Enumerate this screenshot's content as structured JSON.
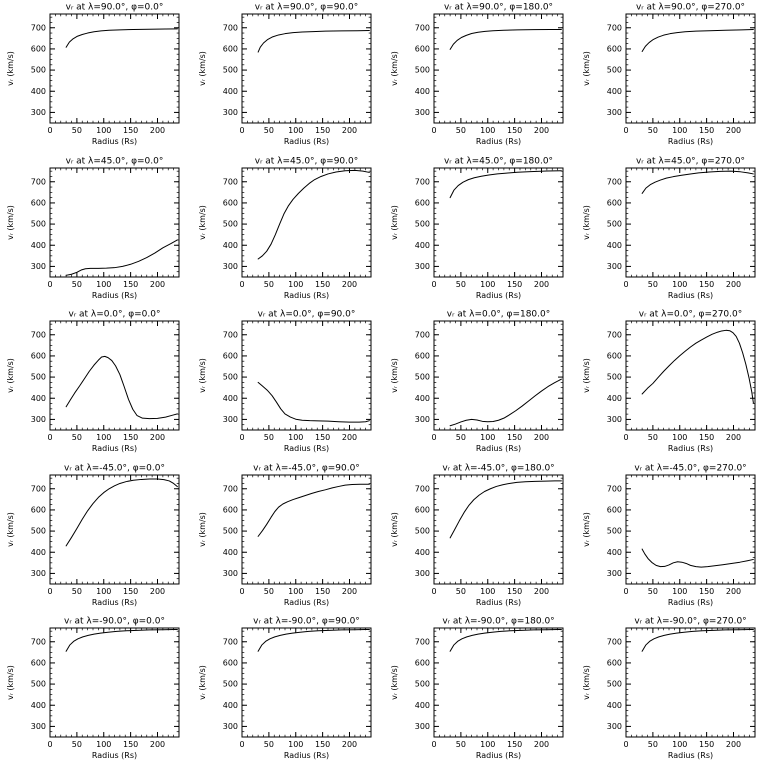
{
  "figure": {
    "background": "#ffffff",
    "line_color": "#000000",
    "rows": 5,
    "cols": 4,
    "latitudes": [
      90.0,
      45.0,
      0.0,
      -45.0,
      -90.0
    ],
    "longitudes": [
      0.0,
      90.0,
      180.0,
      270.0
    ],
    "axes": {
      "xlim": [
        0,
        240
      ],
      "ylim": [
        250,
        765
      ],
      "xticks": [
        0,
        50,
        100,
        150,
        200
      ],
      "yticks": [
        300,
        400,
        500,
        600,
        700
      ],
      "x_minor_step": 10,
      "y_minor_step": 25,
      "xlabel": "Radius (Rs)",
      "ylabel": "vᵣ (km/s)"
    }
  },
  "chart_data": [
    {
      "type": "line",
      "title": "vᵣ at λ=90.0°, φ=0.0°",
      "lat": 90.0,
      "lon": 0.0,
      "xlabel": "Radius (Rs)",
      "ylabel": "vᵣ (km/s)",
      "xlim": [
        0,
        240
      ],
      "ylim": [
        250,
        765
      ],
      "xticks": [
        0,
        50,
        100,
        150,
        200
      ],
      "yticks": [
        300,
        400,
        500,
        600,
        700
      ],
      "x": [
        30,
        36,
        43,
        51,
        60,
        70,
        82,
        95,
        110,
        130,
        155,
        185,
        215,
        237
      ],
      "y": [
        608,
        632,
        648,
        660,
        668,
        675,
        681,
        685,
        688,
        690,
        692,
        693,
        694,
        695
      ]
    },
    {
      "type": "line",
      "title": "vᵣ at λ=90.0°, φ=90.0°",
      "lat": 90.0,
      "lon": 90.0,
      "xlabel": "Radius (Rs)",
      "ylabel": "vᵣ (km/s)",
      "xlim": [
        0,
        240
      ],
      "ylim": [
        250,
        765
      ],
      "xticks": [
        0,
        50,
        100,
        150,
        200
      ],
      "yticks": [
        300,
        400,
        500,
        600,
        700
      ],
      "x": [
        30,
        34,
        40,
        48,
        57,
        68,
        80,
        95,
        112,
        132,
        155,
        185,
        215,
        237
      ],
      "y": [
        585,
        608,
        628,
        645,
        657,
        666,
        672,
        677,
        680,
        682,
        684,
        685,
        686,
        687
      ]
    },
    {
      "type": "line",
      "title": "vᵣ at λ=90.0°, φ=180.0°",
      "lat": 90.0,
      "lon": 180.0,
      "xlabel": "Radius (Rs)",
      "ylabel": "vᵣ (km/s)",
      "xlim": [
        0,
        240
      ],
      "ylim": [
        250,
        765
      ],
      "xticks": [
        0,
        50,
        100,
        150,
        200
      ],
      "yticks": [
        300,
        400,
        500,
        600,
        700
      ],
      "x": [
        30,
        36,
        43,
        51,
        60,
        70,
        82,
        95,
        110,
        130,
        155,
        185,
        215,
        237
      ],
      "y": [
        598,
        622,
        640,
        654,
        664,
        673,
        679,
        683,
        686,
        688,
        690,
        691,
        692,
        692
      ]
    },
    {
      "type": "line",
      "title": "vᵣ at λ=90.0°, φ=270.0°",
      "lat": 90.0,
      "lon": 270.0,
      "xlabel": "Radius (Rs)",
      "ylabel": "vᵣ (km/s)",
      "xlim": [
        0,
        240
      ],
      "ylim": [
        250,
        765
      ],
      "xticks": [
        0,
        50,
        100,
        150,
        200
      ],
      "yticks": [
        300,
        400,
        500,
        600,
        700
      ],
      "x": [
        30,
        36,
        43,
        51,
        60,
        70,
        82,
        95,
        110,
        130,
        155,
        185,
        215,
        237
      ],
      "y": [
        588,
        612,
        630,
        645,
        656,
        665,
        672,
        677,
        681,
        684,
        686,
        688,
        690,
        692
      ]
    },
    {
      "type": "line",
      "title": "vᵣ at λ=45.0°, φ=0.0°",
      "lat": 45.0,
      "lon": 0.0,
      "xlabel": "Radius (Rs)",
      "ylabel": "vᵣ (km/s)",
      "xlim": [
        0,
        240
      ],
      "ylim": [
        250,
        765
      ],
      "xticks": [
        0,
        50,
        100,
        150,
        200
      ],
      "yticks": [
        300,
        400,
        500,
        600,
        700
      ],
      "x": [
        30,
        40,
        50,
        58,
        66,
        75,
        90,
        105,
        120,
        135,
        150,
        165,
        180,
        195,
        210,
        225,
        237
      ],
      "y": [
        258,
        263,
        272,
        283,
        289,
        291,
        291,
        292,
        294,
        300,
        310,
        324,
        342,
        363,
        388,
        408,
        425
      ]
    },
    {
      "type": "line",
      "title": "vᵣ at λ=45.0°, φ=90.0°",
      "lat": 45.0,
      "lon": 90.0,
      "xlabel": "Radius (Rs)",
      "ylabel": "vᵣ (km/s)",
      "xlim": [
        0,
        240
      ],
      "ylim": [
        250,
        765
      ],
      "xticks": [
        0,
        50,
        100,
        150,
        200
      ],
      "yticks": [
        300,
        400,
        500,
        600,
        700
      ],
      "x": [
        30,
        38,
        46,
        54,
        62,
        70,
        78,
        86,
        95,
        105,
        115,
        125,
        135,
        147,
        160,
        175,
        192,
        210,
        225,
        237
      ],
      "y": [
        335,
        350,
        372,
        405,
        450,
        500,
        548,
        585,
        617,
        645,
        670,
        692,
        710,
        725,
        737,
        746,
        752,
        754,
        750,
        744
      ]
    },
    {
      "type": "line",
      "title": "vᵣ at λ=45.0°, φ=180.0°",
      "lat": 45.0,
      "lon": 180.0,
      "xlabel": "Radius (Rs)",
      "ylabel": "vᵣ (km/s)",
      "xlim": [
        0,
        240
      ],
      "ylim": [
        250,
        765
      ],
      "xticks": [
        0,
        50,
        100,
        150,
        200
      ],
      "yticks": [
        300,
        400,
        500,
        600,
        700
      ],
      "x": [
        30,
        37,
        45,
        54,
        64,
        75,
        88,
        102,
        118,
        135,
        155,
        180,
        210,
        237
      ],
      "y": [
        625,
        660,
        682,
        698,
        710,
        719,
        726,
        732,
        737,
        741,
        745,
        748,
        751,
        752
      ]
    },
    {
      "type": "line",
      "title": "vᵣ at λ=45.0°, φ=270.0°",
      "lat": 45.0,
      "lon": 270.0,
      "xlabel": "Radius (Rs)",
      "ylabel": "vᵣ (km/s)",
      "xlim": [
        0,
        240
      ],
      "ylim": [
        250,
        765
      ],
      "xticks": [
        0,
        50,
        100,
        150,
        200
      ],
      "yticks": [
        300,
        400,
        500,
        600,
        700
      ],
      "x": [
        30,
        37,
        45,
        54,
        64,
        75,
        88,
        102,
        118,
        135,
        155,
        175,
        195,
        213,
        227,
        237
      ],
      "y": [
        645,
        670,
        686,
        698,
        708,
        717,
        724,
        730,
        736,
        742,
        746,
        749,
        750,
        747,
        742,
        737
      ]
    },
    {
      "type": "line",
      "title": "vᵣ at λ=0.0°, φ=0.0°",
      "lat": 0.0,
      "lon": 0.0,
      "xlabel": "Radius (Rs)",
      "ylabel": "vᵣ (km/s)",
      "xlim": [
        0,
        240
      ],
      "ylim": [
        250,
        765
      ],
      "xticks": [
        0,
        50,
        100,
        150,
        200
      ],
      "yticks": [
        300,
        400,
        500,
        600,
        700
      ],
      "x": [
        30,
        38,
        46,
        55,
        64,
        73,
        82,
        90,
        96,
        102,
        108,
        115,
        122,
        130,
        138,
        146,
        154,
        162,
        172,
        185,
        200,
        215,
        228,
        237
      ],
      "y": [
        360,
        393,
        425,
        458,
        492,
        527,
        557,
        580,
        595,
        598,
        592,
        578,
        553,
        512,
        455,
        395,
        348,
        318,
        306,
        304,
        305,
        311,
        320,
        326
      ]
    },
    {
      "type": "line",
      "title": "vᵣ at λ=0.0°, φ=90.0°",
      "lat": 0.0,
      "lon": 90.0,
      "xlabel": "Radius (Rs)",
      "ylabel": "vᵣ (km/s)",
      "xlim": [
        0,
        240
      ],
      "ylim": [
        250,
        765
      ],
      "xticks": [
        0,
        50,
        100,
        150,
        200
      ],
      "yticks": [
        300,
        400,
        500,
        600,
        700
      ],
      "x": [
        30,
        38,
        47,
        56,
        64,
        72,
        80,
        90,
        100,
        112,
        126,
        142,
        160,
        180,
        200,
        218,
        230,
        237
      ],
      "y": [
        475,
        458,
        438,
        412,
        382,
        350,
        326,
        311,
        301,
        296,
        294,
        293,
        292,
        289,
        287,
        287,
        289,
        294
      ]
    },
    {
      "type": "line",
      "title": "vᵣ at λ=0.0°, φ=180.0°",
      "lat": 0.0,
      "lon": 180.0,
      "xlabel": "Radius (Rs)",
      "ylabel": "vᵣ (km/s)",
      "xlim": [
        0,
        240
      ],
      "ylim": [
        250,
        765
      ],
      "xticks": [
        0,
        50,
        100,
        150,
        200
      ],
      "yticks": [
        300,
        400,
        500,
        600,
        700
      ],
      "x": [
        30,
        40,
        50,
        60,
        70,
        80,
        90,
        100,
        110,
        120,
        130,
        140,
        152,
        164,
        176,
        188,
        200,
        212,
        224,
        233,
        237
      ],
      "y": [
        270,
        278,
        288,
        296,
        300,
        297,
        291,
        289,
        290,
        296,
        306,
        321,
        341,
        363,
        387,
        411,
        434,
        455,
        473,
        485,
        490
      ]
    },
    {
      "type": "line",
      "title": "vᵣ at λ=0.0°, φ=270.0°",
      "lat": 0.0,
      "lon": 270.0,
      "xlabel": "Radius (Rs)",
      "ylabel": "vᵣ (km/s)",
      "xlim": [
        0,
        240
      ],
      "ylim": [
        250,
        765
      ],
      "xticks": [
        0,
        50,
        100,
        150,
        200
      ],
      "yticks": [
        300,
        400,
        500,
        600,
        700
      ],
      "x": [
        30,
        40,
        50,
        60,
        70,
        80,
        90,
        100,
        110,
        120,
        130,
        140,
        150,
        160,
        170,
        178,
        186,
        193,
        199,
        205,
        211,
        217,
        223,
        229,
        234,
        237
      ],
      "y": [
        420,
        447,
        470,
        499,
        527,
        553,
        578,
        601,
        622,
        642,
        660,
        675,
        689,
        702,
        712,
        718,
        721,
        719,
        710,
        692,
        660,
        615,
        560,
        495,
        430,
        378
      ]
    },
    {
      "type": "line",
      "title": "vᵣ at λ=-45.0°, φ=0.0°",
      "lat": -45.0,
      "lon": 0.0,
      "xlabel": "Radius (Rs)",
      "ylabel": "vᵣ (km/s)",
      "xlim": [
        0,
        240
      ],
      "ylim": [
        250,
        765
      ],
      "xticks": [
        0,
        50,
        100,
        150,
        200
      ],
      "yticks": [
        300,
        400,
        500,
        600,
        700
      ],
      "x": [
        30,
        40,
        50,
        60,
        70,
        80,
        90,
        100,
        110,
        120,
        130,
        142,
        155,
        170,
        185,
        200,
        212,
        222,
        230,
        237
      ],
      "y": [
        430,
        470,
        512,
        556,
        596,
        630,
        659,
        682,
        700,
        714,
        725,
        734,
        740,
        744,
        746,
        746,
        743,
        737,
        725,
        710
      ]
    },
    {
      "type": "line",
      "title": "vᵣ at λ=-45.0°, φ=90.0°",
      "lat": -45.0,
      "lon": 90.0,
      "xlabel": "Radius (Rs)",
      "ylabel": "vᵣ (km/s)",
      "xlim": [
        0,
        240
      ],
      "ylim": [
        250,
        765
      ],
      "xticks": [
        0,
        50,
        100,
        150,
        200
      ],
      "yticks": [
        300,
        400,
        500,
        600,
        700
      ],
      "x": [
        30,
        38,
        46,
        54,
        61,
        68,
        76,
        85,
        95,
        106,
        118,
        130,
        142,
        155,
        168,
        180,
        192,
        205,
        220,
        237
      ],
      "y": [
        475,
        502,
        532,
        565,
        592,
        613,
        628,
        639,
        649,
        658,
        668,
        678,
        687,
        695,
        704,
        711,
        717,
        720,
        721,
        721
      ]
    },
    {
      "type": "line",
      "title": "vᵣ at λ=-45.0°, φ=180.0°",
      "lat": -45.0,
      "lon": 180.0,
      "xlabel": "Radius (Rs)",
      "ylabel": "vᵣ (km/s)",
      "xlim": [
        0,
        240
      ],
      "ylim": [
        250,
        765
      ],
      "xticks": [
        0,
        50,
        100,
        150,
        200
      ],
      "yticks": [
        300,
        400,
        500,
        600,
        700
      ],
      "x": [
        30,
        38,
        47,
        56,
        65,
        74,
        84,
        94,
        105,
        116,
        128,
        140,
        154,
        170,
        188,
        208,
        225,
        237
      ],
      "y": [
        468,
        505,
        548,
        588,
        622,
        648,
        670,
        687,
        700,
        711,
        719,
        725,
        730,
        733,
        735,
        736,
        737,
        737
      ]
    },
    {
      "type": "line",
      "title": "vᵣ at λ=-45.0°, φ=270.0°",
      "lat": -45.0,
      "lon": 270.0,
      "xlabel": "Radius (Rs)",
      "ylabel": "vᵣ (km/s)",
      "xlim": [
        0,
        240
      ],
      "ylim": [
        250,
        765
      ],
      "xticks": [
        0,
        50,
        100,
        150,
        200
      ],
      "yticks": [
        300,
        400,
        500,
        600,
        700
      ],
      "x": [
        30,
        35,
        41,
        48,
        56,
        64,
        72,
        80,
        88,
        96,
        104,
        112,
        120,
        130,
        140,
        152,
        165,
        180,
        196,
        212,
        226,
        237
      ],
      "y": [
        415,
        392,
        370,
        352,
        338,
        332,
        333,
        340,
        350,
        355,
        353,
        347,
        338,
        332,
        330,
        332,
        336,
        341,
        347,
        353,
        360,
        366
      ]
    },
    {
      "type": "line",
      "title": "vᵣ at λ=-90.0°, φ=0.0°",
      "lat": -90.0,
      "lon": 0.0,
      "xlabel": "Radius (Rs)",
      "ylabel": "vᵣ (km/s)",
      "xlim": [
        0,
        240
      ],
      "ylim": [
        250,
        765
      ],
      "xticks": [
        0,
        50,
        100,
        150,
        200
      ],
      "yticks": [
        300,
        400,
        500,
        600,
        700
      ],
      "x": [
        30,
        37,
        44,
        52,
        61,
        71,
        82,
        94,
        108,
        124,
        142,
        162,
        185,
        210,
        230,
        237
      ],
      "y": [
        655,
        685,
        702,
        714,
        723,
        730,
        736,
        741,
        745,
        749,
        752,
        754,
        756,
        757,
        758,
        758
      ]
    },
    {
      "type": "line",
      "title": "vᵣ at λ=-90.0°, φ=90.0°",
      "lat": -90.0,
      "lon": 90.0,
      "xlabel": "Radius (Rs)",
      "ylabel": "vᵣ (km/s)",
      "xlim": [
        0,
        240
      ],
      "ylim": [
        250,
        765
      ],
      "xticks": [
        0,
        50,
        100,
        150,
        200
      ],
      "yticks": [
        300,
        400,
        500,
        600,
        700
      ],
      "x": [
        30,
        37,
        44,
        52,
        61,
        71,
        82,
        94,
        108,
        124,
        142,
        162,
        185,
        210,
        230,
        237
      ],
      "y": [
        655,
        685,
        702,
        714,
        723,
        730,
        736,
        741,
        745,
        749,
        752,
        754,
        756,
        757,
        758,
        758
      ]
    },
    {
      "type": "line",
      "title": "vᵣ at λ=-90.0°, φ=180.0°",
      "lat": -90.0,
      "lon": 180.0,
      "xlabel": "Radius (Rs)",
      "ylabel": "vᵣ (km/s)",
      "xlim": [
        0,
        240
      ],
      "ylim": [
        250,
        765
      ],
      "xticks": [
        0,
        50,
        100,
        150,
        200
      ],
      "yticks": [
        300,
        400,
        500,
        600,
        700
      ],
      "x": [
        30,
        37,
        44,
        52,
        61,
        71,
        82,
        94,
        108,
        124,
        142,
        162,
        185,
        210,
        230,
        237
      ],
      "y": [
        655,
        685,
        702,
        714,
        723,
        730,
        736,
        741,
        745,
        749,
        752,
        754,
        756,
        757,
        758,
        758
      ]
    },
    {
      "type": "line",
      "title": "vᵣ at λ=-90.0°, φ=270.0°",
      "lat": -90.0,
      "lon": 270.0,
      "xlabel": "Radius (Rs)",
      "ylabel": "vᵣ (km/s)",
      "xlim": [
        0,
        240
      ],
      "ylim": [
        250,
        765
      ],
      "xticks": [
        0,
        50,
        100,
        150,
        200
      ],
      "yticks": [
        300,
        400,
        500,
        600,
        700
      ],
      "x": [
        30,
        37,
        44,
        52,
        61,
        71,
        82,
        94,
        108,
        124,
        142,
        162,
        185,
        210,
        230,
        237
      ],
      "y": [
        655,
        685,
        702,
        714,
        723,
        730,
        736,
        741,
        745,
        749,
        752,
        754,
        756,
        757,
        758,
        758
      ]
    }
  ]
}
